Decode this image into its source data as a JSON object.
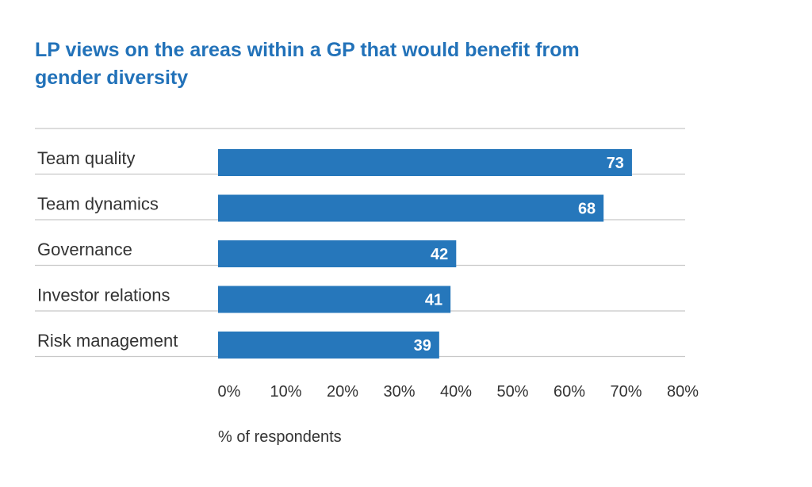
{
  "chart_data": {
    "type": "bar",
    "orientation": "horizontal",
    "title": "LP views on the areas within a GP that would benefit from gender diversity",
    "categories": [
      "Team quality",
      "Team dynamics",
      "Governance",
      "Investor relations",
      "Risk management"
    ],
    "values": [
      73,
      68,
      42,
      41,
      39
    ],
    "value_labels": [
      "73",
      "68",
      "42",
      "41",
      "39"
    ],
    "xlabel": "% of respondents",
    "ylabel": "",
    "xlim": [
      0,
      80
    ],
    "x_ticks": [
      "0%",
      "10%",
      "20%",
      "30%",
      "40%",
      "50%",
      "60%",
      "70%",
      "80%"
    ],
    "grid": false,
    "legend": "none",
    "bar_color": "#2677bb",
    "separator_color": "#c8c8c8",
    "title_color": "#2272b9"
  }
}
